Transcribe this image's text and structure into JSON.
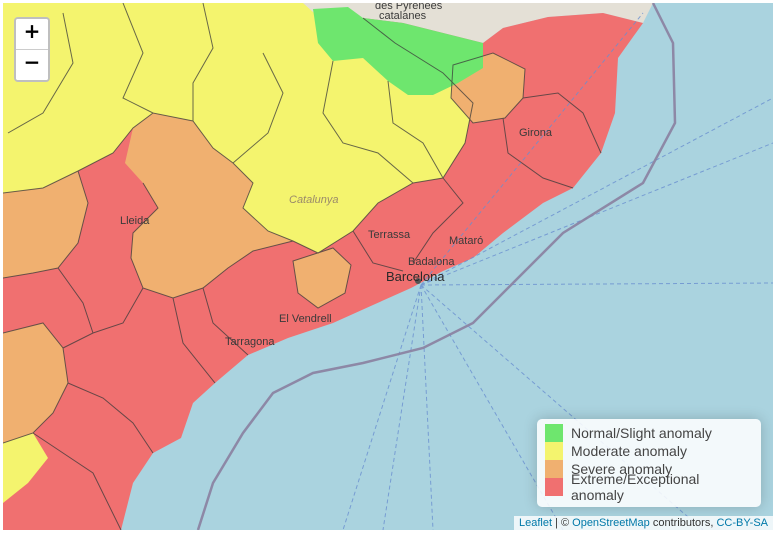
{
  "map": {
    "zoom_in_label": "+",
    "zoom_out_label": "−",
    "places": {
      "catalanes": "catalanes",
      "pyrenees": "des Pyrénées",
      "girona": "Girona",
      "lleida": "Lleida",
      "catalunya": "Catalunya",
      "terrassa": "Terrassa",
      "mataro": "Mataró",
      "badalona": "Badalona",
      "barcelona": "Barcelona",
      "vendrell": "El Vendrell",
      "tarragona": "Tarragona"
    }
  },
  "legend": {
    "items": [
      {
        "label": "Normal/Slight anomaly",
        "color": "#6ee66e"
      },
      {
        "label": "Moderate anomaly",
        "color": "#f4f46e"
      },
      {
        "label": "Severe anomaly",
        "color": "#f0b070"
      },
      {
        "label": "Extreme/Exceptional anomaly",
        "color": "#f07070"
      }
    ]
  },
  "attribution": {
    "leaflet": "Leaflet",
    "separator": " | © ",
    "osm": "OpenStreetMap",
    "contributors": " contributors, ",
    "license": "CC-BY-SA"
  }
}
